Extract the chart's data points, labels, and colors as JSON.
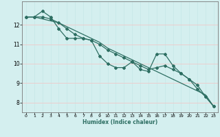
{
  "xlabel": "Humidex (Indice chaleur)",
  "bg_color": "#d4efef",
  "grid_color_v": "#c8e8e8",
  "grid_color_h": "#f0c8c8",
  "line_color": "#2d6e62",
  "x_values": [
    0,
    1,
    2,
    3,
    4,
    5,
    6,
    7,
    8,
    9,
    10,
    11,
    12,
    13,
    14,
    15,
    16,
    17,
    18,
    19,
    20,
    21,
    22,
    23
  ],
  "line1": [
    12.4,
    12.4,
    12.7,
    12.4,
    11.8,
    11.3,
    11.3,
    11.3,
    11.2,
    10.4,
    10.0,
    9.8,
    9.8,
    10.1,
    9.7,
    9.6,
    10.5,
    10.5,
    9.9,
    9.5,
    9.2,
    8.7,
    8.3,
    7.8
  ],
  "line2": [
    12.4,
    12.4,
    12.4,
    12.3,
    12.1,
    11.8,
    11.5,
    11.3,
    11.2,
    11.0,
    10.7,
    10.5,
    10.3,
    10.1,
    9.9,
    9.7,
    9.8,
    9.9,
    9.7,
    9.5,
    9.2,
    8.9,
    8.3,
    7.8
  ],
  "line3": [
    12.4,
    12.4,
    12.3,
    12.2,
    12.1,
    11.9,
    11.7,
    11.5,
    11.3,
    11.1,
    10.8,
    10.6,
    10.4,
    10.2,
    10.0,
    9.8,
    9.6,
    9.4,
    9.2,
    9.0,
    8.8,
    8.6,
    8.4,
    7.8
  ],
  "ylim": [
    7.5,
    13.2
  ],
  "yticks": [
    8,
    9,
    10,
    11,
    12
  ],
  "xlim": [
    -0.5,
    23.5
  ],
  "xtick_labels": [
    "0",
    "1",
    "2",
    "3",
    "4",
    "5",
    "6",
    "7",
    "8",
    "9",
    "10",
    "11",
    "12",
    "13",
    "14",
    "15",
    "16",
    "17",
    "18",
    "19",
    "20",
    "21",
    "22",
    "23"
  ]
}
